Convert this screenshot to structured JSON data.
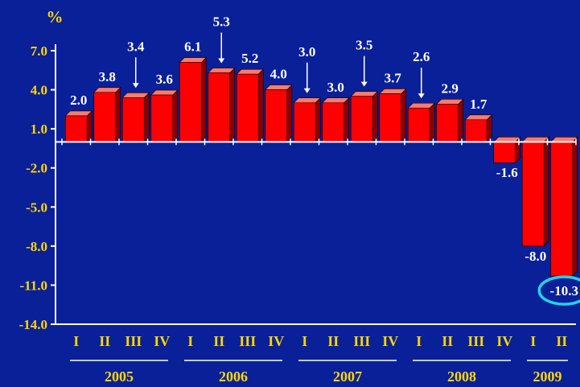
{
  "unit_label": "%",
  "chart_data": {
    "type": "bar",
    "categories": [
      "I",
      "II",
      "III",
      "IV",
      "I",
      "II",
      "III",
      "IV",
      "I",
      "II",
      "III",
      "IV",
      "I",
      "II",
      "III",
      "IV",
      "I",
      "II"
    ],
    "values": [
      2.0,
      3.8,
      3.4,
      3.6,
      6.1,
      5.3,
      5.2,
      4.0,
      3.0,
      3.0,
      3.5,
      3.7,
      2.6,
      2.9,
      1.7,
      -1.6,
      -8.0,
      -10.3
    ],
    "value_labels": [
      "2.0",
      "3.8",
      "3.4",
      "3.6",
      "6.1",
      "5.3",
      "5.2",
      "4.0",
      "3.0",
      "3.0",
      "3.5",
      "3.7",
      "2.6",
      "2.9",
      "1.7",
      "-1.6",
      "-8.0",
      "-10.3"
    ],
    "years": [
      {
        "label": "2005",
        "span": 4
      },
      {
        "label": "2006",
        "span": 4
      },
      {
        "label": "2007",
        "span": 4
      },
      {
        "label": "2008",
        "span": 4
      },
      {
        "label": "2009",
        "span": 2
      }
    ],
    "yticks": [
      7.0,
      4.0,
      1.0,
      -2.0,
      -5.0,
      -8.0,
      -11.0,
      -14.0
    ],
    "ytick_labels": [
      "7.0",
      "4.0",
      "1.0",
      "-2.0",
      "-5.0",
      "-8.0",
      "-11.0",
      "-14.0"
    ],
    "ylim": [
      -14,
      7.5
    ],
    "highlighted_index": 17,
    "arrow_indices": [
      2,
      5,
      8,
      10,
      12
    ],
    "colors": {
      "background": "#0a2099",
      "bar_front": "#ff0000",
      "bar_top": "#ff7a6a",
      "bar_side": "#8b0000",
      "tick_labels": "#ffd700",
      "value_labels": "#ffffff",
      "highlight_ring": "#22d3e6"
    }
  }
}
